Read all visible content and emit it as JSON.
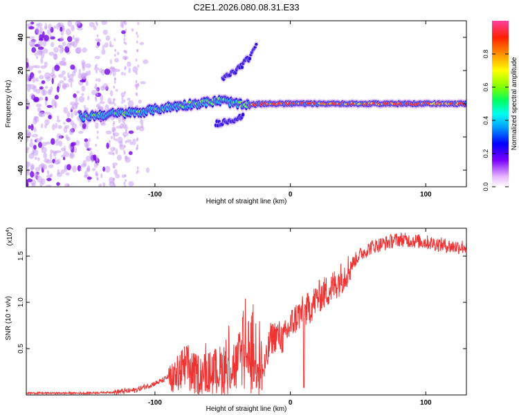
{
  "title": "C2E1.2026.080.08.31.E33",
  "chart_data": [
    {
      "type": "heatmap",
      "xlabel": "Height of straight line (km)",
      "ylabel": "Frequency (Hz)",
      "xlim": [
        -195,
        130
      ],
      "ylim": [
        -50,
        50
      ],
      "xticks": [
        -100,
        0,
        100
      ],
      "yticks": [
        -40,
        -20,
        0,
        20,
        40
      ],
      "colorbar": {
        "label": "Normalized spectral amplitude",
        "range": [
          0,
          1
        ],
        "ticks": [
          0.0,
          0.2,
          0.4,
          0.6,
          0.8
        ],
        "tick_labels": [
          "0.0",
          "0.2",
          "0.4",
          "0.6",
          "0.8"
        ]
      },
      "features": [
        {
          "name": "main-trace",
          "x": [
            -155,
            -130,
            -110,
            -90,
            -70,
            -50,
            -35,
            -20,
            0,
            50,
            100,
            130
          ],
          "y": [
            -8,
            -6,
            -5,
            -2,
            0,
            2,
            -1,
            0,
            0,
            0,
            0,
            0
          ]
        },
        {
          "name": "rising-branch",
          "x": [
            -50,
            -40,
            -30,
            -25
          ],
          "y": [
            15,
            20,
            28,
            36
          ]
        },
        {
          "name": "lower-branch",
          "x": [
            -55,
            -45,
            -35
          ],
          "y": [
            -12,
            -10,
            -8
          ]
        }
      ]
    },
    {
      "type": "line",
      "xlabel": "Height of straight line (km)",
      "ylabel": "SNR (10 * v/v)",
      "scale_label": "(x10",
      "scale_exp": "4",
      "scale_close": ")",
      "xlim": [
        -195,
        130
      ],
      "ylim": [
        0,
        1.8
      ],
      "xticks": [
        -100,
        0,
        100
      ],
      "yticks": [
        0.5,
        1.0,
        1.5
      ],
      "ytick_labels": [
        "0.5",
        "1.0",
        "1.5"
      ],
      "series": [
        {
          "name": "SNR",
          "color": "#ee3333",
          "x": [
            -195,
            -150,
            -130,
            -115,
            -105,
            -95,
            -85,
            -78,
            -70,
            -60,
            -50,
            -45,
            -40,
            -35,
            -30,
            -26,
            -23,
            -20,
            -17,
            -15,
            -10,
            -5,
            0,
            5,
            10,
            15,
            20,
            30,
            40,
            50,
            60,
            80,
            100,
            120,
            130
          ],
          "y": [
            0.02,
            0.02,
            0.03,
            0.05,
            0.1,
            0.15,
            0.25,
            0.35,
            0.28,
            0.3,
            0.35,
            0.45,
            0.38,
            0.55,
            0.5,
            0.7,
            0.55,
            0.25,
            0.4,
            0.6,
            0.65,
            0.6,
            0.75,
            0.85,
            0.9,
            0.95,
            1.05,
            1.15,
            1.3,
            1.5,
            1.6,
            1.68,
            1.65,
            1.6,
            1.6
          ]
        }
      ]
    }
  ]
}
